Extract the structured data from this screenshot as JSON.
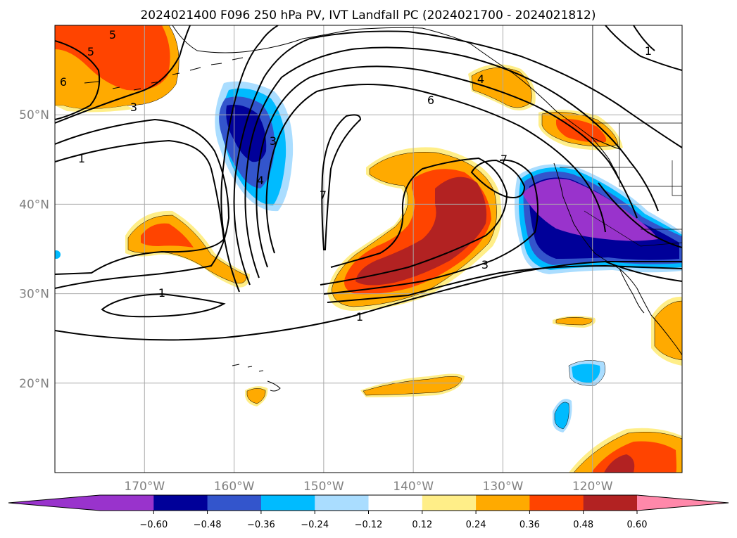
{
  "title": "2024021400 F096 250 hPa PV, IVT Landfall PC (2024021700 - 2024021812)",
  "map": {
    "lon_range": [
      -180,
      -110
    ],
    "lat_range": [
      10,
      60
    ],
    "lon_ticks": [
      {
        "lon": -170,
        "label": "170°W"
      },
      {
        "lon": -160,
        "label": "160°W"
      },
      {
        "lon": -150,
        "label": "150°W"
      },
      {
        "lon": -140,
        "label": "140°W"
      },
      {
        "lon": -130,
        "label": "130°W"
      },
      {
        "lon": -120,
        "label": "120°W"
      }
    ],
    "lat_ticks": [
      {
        "lat": 20,
        "label": "20°N"
      },
      {
        "lat": 30,
        "label": "30°N"
      },
      {
        "lat": 40,
        "label": "40°N"
      },
      {
        "lat": 50,
        "label": "50°N"
      }
    ],
    "grid": true
  },
  "colorbar": {
    "ticks": [
      "−0.60",
      "−0.48",
      "−0.36",
      "−0.24",
      "−0.12",
      "0.12",
      "0.24",
      "0.36",
      "0.48",
      "0.60"
    ],
    "colors": {
      "under": "#9933cc",
      "bins": [
        "#9933cc",
        "#000099",
        "#3355cc",
        "#00bbff",
        "#aaddff",
        "#ffffff",
        "#ffee88",
        "#ffaa00",
        "#ff4400",
        "#b22222"
      ],
      "over": "#ff88aa"
    }
  },
  "contour_labels": [
    "1",
    "3",
    "5",
    "7",
    "4",
    "6",
    "3",
    "1",
    "7",
    "6",
    "5",
    "4",
    "3",
    "1",
    "1"
  ],
  "colors": {
    "neg_strong": "#000099",
    "neg_mid": "#3355cc",
    "neg_light": "#00bbff",
    "neg_pale": "#aaddff",
    "purple": "#9933cc",
    "pos_pale": "#ffee88",
    "pos_orange": "#ffaa00",
    "pos_red": "#ff4400",
    "pos_dark": "#b22222",
    "land": "#000000"
  }
}
